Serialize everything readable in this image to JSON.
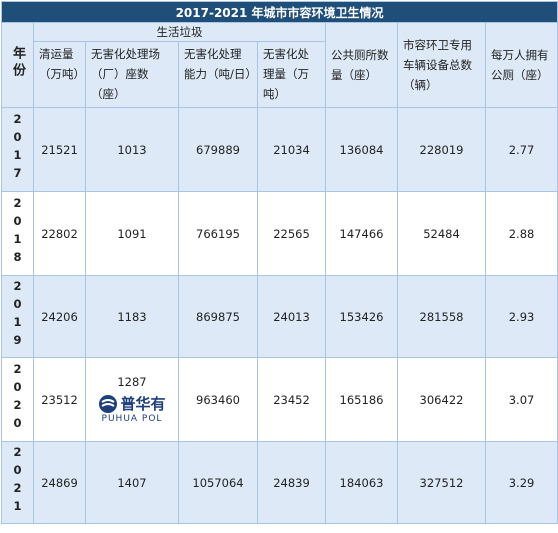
{
  "title": "2017-2021 年城市市容环境卫生情况",
  "header": {
    "year": "年份",
    "group": "生活垃圾",
    "columns": [
      "清运量（万吨）",
      "无害化处理场（厂）座数（座）",
      "无害化处理能力（吨/日）",
      "无害化处理量（万吨）",
      "公共厕所数量（座）",
      "市容环卫专用车辆设备总数（辆）",
      "每万人拥有公厕（座）"
    ]
  },
  "rows": [
    {
      "year": "2017",
      "values": [
        21521,
        1013,
        679889,
        21034,
        136084,
        228019,
        2.77
      ]
    },
    {
      "year": "2018",
      "values": [
        22802,
        1091,
        766195,
        22565,
        147466,
        52484,
        2.88
      ]
    },
    {
      "year": "2019",
      "values": [
        24206,
        1183,
        869875,
        24013,
        153426,
        281558,
        2.93
      ]
    },
    {
      "year": "2020",
      "values": [
        23512,
        1287,
        963460,
        23452,
        165186,
        306422,
        3.07
      ]
    },
    {
      "year": "2021",
      "values": [
        24869,
        1407,
        1057064,
        24839,
        184063,
        327512,
        3.29
      ]
    }
  ],
  "watermark": {
    "text": "普华有",
    "subtext": "PUHUA POL"
  }
}
